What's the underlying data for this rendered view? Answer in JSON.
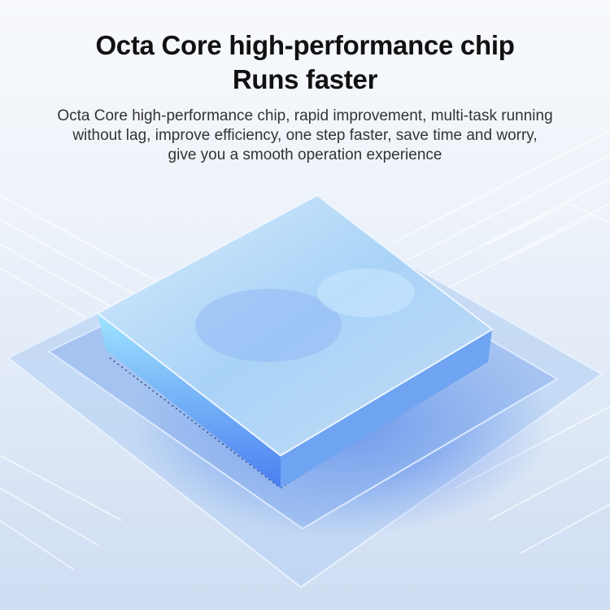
{
  "heading": {
    "line1": "Octa Core high-performance chip",
    "line2": "Runs faster"
  },
  "description": {
    "lines": [
      "Octa Core high-performance chip, rapid improvement, multi-task running",
      "without lag, improve efficiency, one step faster, save time and worry,",
      "give you a smooth operation experience"
    ]
  },
  "colors": {
    "accent_blue": "#2f6fe8",
    "glow_cyan": "#7fd8ff",
    "text": "#111111"
  }
}
